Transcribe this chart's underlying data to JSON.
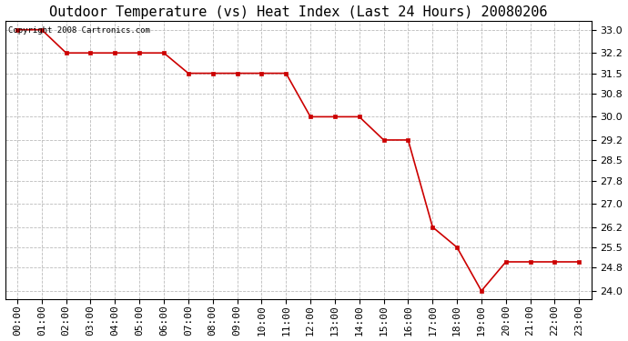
{
  "title": "Outdoor Temperature (vs) Heat Index (Last 24 Hours) 20080206",
  "copyright_text": "Copyright 2008 Cartronics.com",
  "line_color": "#cc0000",
  "marker": "s",
  "marker_size": 3,
  "background_color": "#ffffff",
  "grid_color": "#bbbbbb",
  "x_labels": [
    "00:00",
    "01:00",
    "02:00",
    "03:00",
    "04:00",
    "05:00",
    "06:00",
    "07:00",
    "08:00",
    "09:00",
    "10:00",
    "11:00",
    "12:00",
    "13:00",
    "14:00",
    "15:00",
    "16:00",
    "17:00",
    "18:00",
    "19:00",
    "20:00",
    "21:00",
    "22:00",
    "23:00"
  ],
  "y_values": [
    33.0,
    33.0,
    32.2,
    32.2,
    32.2,
    32.2,
    32.2,
    31.5,
    31.5,
    31.5,
    31.5,
    31.5,
    30.0,
    30.0,
    30.0,
    29.2,
    29.2,
    26.2,
    25.5,
    24.0,
    25.0,
    25.0,
    25.0,
    25.0
  ],
  "ylim": [
    23.7,
    33.3
  ],
  "yticks": [
    24.0,
    24.8,
    25.5,
    26.2,
    27.0,
    27.8,
    28.5,
    29.2,
    30.0,
    30.8,
    31.5,
    32.2,
    33.0
  ],
  "title_fontsize": 11,
  "tick_fontsize": 8,
  "copyright_fontsize": 6.5
}
